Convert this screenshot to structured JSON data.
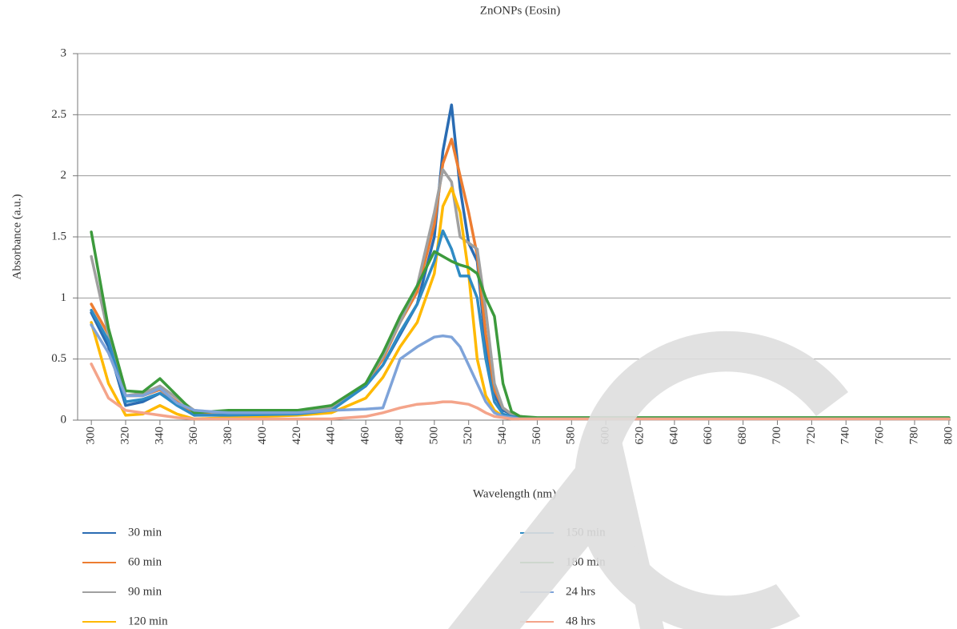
{
  "chart_data": {
    "type": "line",
    "title": "ZnONPs (Eosin)",
    "x_label": "Wavelength (nm)",
    "y_label": "Absorbance (a.u.)",
    "x": [
      300,
      310,
      320,
      330,
      340,
      350,
      360,
      380,
      420,
      440,
      460,
      470,
      480,
      490,
      500,
      505,
      510,
      515,
      520,
      525,
      530,
      535,
      540,
      545,
      550,
      560,
      600,
      700,
      800
    ],
    "series": [
      {
        "name": "30 min",
        "color": "#2a6cb3",
        "values": [
          0.88,
          0.6,
          0.12,
          0.15,
          0.22,
          0.13,
          0.04,
          0.05,
          0.06,
          0.1,
          0.28,
          0.45,
          0.7,
          0.95,
          1.5,
          2.2,
          2.58,
          1.9,
          1.45,
          1.3,
          0.6,
          0.2,
          0.08,
          0.05,
          0.03,
          0.01,
          0.01,
          0.01,
          0.01
        ]
      },
      {
        "name": "60 min",
        "color": "#ed7d31",
        "values": [
          0.95,
          0.7,
          0.2,
          0.2,
          0.25,
          0.15,
          0.05,
          0.04,
          0.05,
          0.1,
          0.3,
          0.5,
          0.8,
          1.05,
          1.6,
          2.1,
          2.3,
          2.0,
          1.7,
          1.35,
          0.7,
          0.25,
          0.1,
          0.05,
          0.03,
          0.01,
          0.01,
          0.01,
          0.01
        ]
      },
      {
        "name": "90 min",
        "color": "#a0a0a0",
        "values": [
          1.34,
          0.7,
          0.2,
          0.22,
          0.28,
          0.18,
          0.08,
          0.05,
          0.06,
          0.1,
          0.3,
          0.52,
          0.8,
          1.1,
          1.7,
          2.05,
          1.95,
          1.5,
          1.45,
          1.4,
          0.9,
          0.3,
          0.1,
          0.05,
          0.03,
          0.01,
          0.01,
          0.01,
          0.01
        ]
      },
      {
        "name": "120 min",
        "color": "#ffb900",
        "values": [
          0.8,
          0.3,
          0.04,
          0.05,
          0.12,
          0.05,
          0.01,
          0.02,
          0.04,
          0.06,
          0.18,
          0.35,
          0.6,
          0.8,
          1.2,
          1.75,
          1.9,
          1.7,
          1.2,
          0.5,
          0.2,
          0.08,
          0.03,
          0.02,
          0.02,
          0.01,
          0.01,
          0.01,
          0.01
        ]
      },
      {
        "name": "150 min",
        "color": "#2f8bc4",
        "values": [
          0.9,
          0.65,
          0.15,
          0.17,
          0.22,
          0.12,
          0.04,
          0.04,
          0.05,
          0.08,
          0.28,
          0.45,
          0.72,
          0.95,
          1.3,
          1.55,
          1.4,
          1.18,
          1.18,
          1.0,
          0.5,
          0.15,
          0.05,
          0.03,
          0.02,
          0.01,
          0.01,
          0.01,
          0.01
        ]
      },
      {
        "name": "180 min",
        "color": "#3c9a3c",
        "values": [
          1.54,
          0.75,
          0.24,
          0.23,
          0.34,
          0.2,
          0.06,
          0.08,
          0.08,
          0.12,
          0.3,
          0.55,
          0.85,
          1.1,
          1.38,
          1.34,
          1.3,
          1.27,
          1.25,
          1.2,
          1.0,
          0.85,
          0.3,
          0.07,
          0.03,
          0.02,
          0.02,
          0.02,
          0.02
        ]
      },
      {
        "name": "24 hrs",
        "color": "#7ea3d9",
        "values": [
          0.78,
          0.55,
          0.2,
          0.2,
          0.26,
          0.14,
          0.08,
          0.06,
          0.06,
          0.08,
          0.09,
          0.1,
          0.5,
          0.6,
          0.68,
          0.69,
          0.68,
          0.6,
          0.45,
          0.3,
          0.15,
          0.06,
          0.03,
          0.02,
          0.01,
          0.01,
          0.01,
          0.01,
          0.01
        ]
      },
      {
        "name": "48 hrs",
        "color": "#f4a48a",
        "values": [
          0.46,
          0.18,
          0.08,
          0.06,
          0.04,
          0.02,
          0.01,
          0.01,
          0.01,
          0.01,
          0.03,
          0.06,
          0.1,
          0.13,
          0.14,
          0.15,
          0.15,
          0.14,
          0.13,
          0.1,
          0.06,
          0.03,
          0.02,
          0.01,
          0.01,
          0.01,
          0.01,
          0.01,
          0.01
        ]
      }
    ],
    "xlim": [
      292,
      801
    ],
    "ylim": [
      0,
      3
    ],
    "xticks": [
      300,
      320,
      340,
      360,
      380,
      400,
      420,
      440,
      460,
      480,
      500,
      520,
      540,
      560,
      580,
      600,
      620,
      640,
      660,
      680,
      700,
      720,
      740,
      760,
      780,
      800
    ],
    "yticks": [
      0,
      0.5,
      1,
      1.5,
      2,
      2.5,
      3
    ],
    "grid": true,
    "legend": "bottom"
  }
}
